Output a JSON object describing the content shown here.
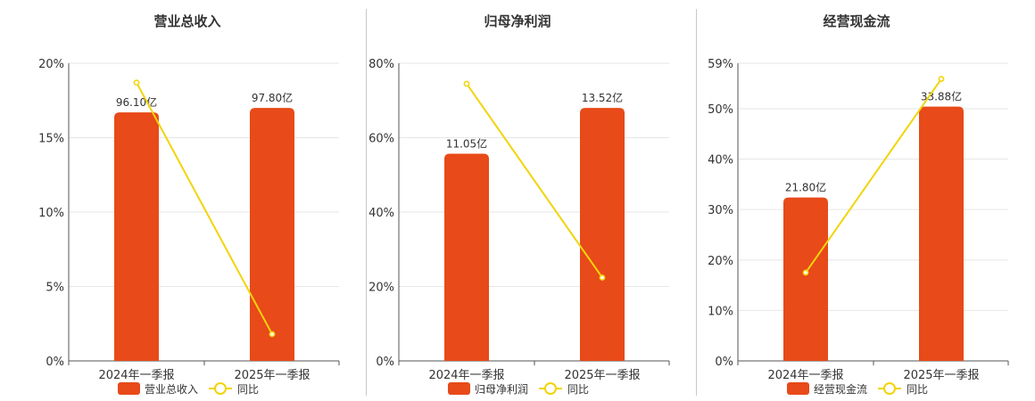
{
  "chart_data": [
    {
      "type": "bar",
      "title": "营业总收入",
      "categories": [
        "2024年一季报",
        "2025年一季报"
      ],
      "bar_series": {
        "name": "营业总收入",
        "data_labels": [
          "96.10亿",
          "97.80亿"
        ],
        "values": [
          96.1,
          97.8
        ]
      },
      "line_series": {
        "name": "同比",
        "values": [
          18.7,
          1.8
        ]
      },
      "y_ticks": [
        "0%",
        "5%",
        "10%",
        "15%",
        "20%"
      ],
      "ylim": [
        0,
        20
      ],
      "bar_heights_pct": [
        16.7,
        17.0
      ],
      "grid": true,
      "legend": "bottom"
    },
    {
      "type": "bar",
      "title": "归母净利润",
      "categories": [
        "2024年一季报",
        "2025年一季报"
      ],
      "bar_series": {
        "name": "归母净利润",
        "data_labels": [
          "11.05亿",
          "13.52亿"
        ],
        "values": [
          11.05,
          13.52
        ]
      },
      "line_series": {
        "name": "同比",
        "values": [
          74.5,
          22.4
        ]
      },
      "y_ticks": [
        "0%",
        "20%",
        "40%",
        "60%",
        "80%"
      ],
      "ylim": [
        0,
        80
      ],
      "bar_heights_pct": [
        55.7,
        68.0
      ],
      "grid": true,
      "legend": "bottom"
    },
    {
      "type": "bar",
      "title": "经营现金流",
      "categories": [
        "2024年一季报",
        "2025年一季报"
      ],
      "bar_series": {
        "name": "经营现金流",
        "data_labels": [
          "21.80亿",
          "33.88亿"
        ],
        "values": [
          21.8,
          33.88
        ]
      },
      "line_series": {
        "name": "同比",
        "values": [
          17.5,
          55.9
        ]
      },
      "y_ticks": [
        "0%",
        "10%",
        "20%",
        "30%",
        "40%",
        "50%",
        "59%"
      ],
      "y_tick_values": [
        0,
        10,
        20,
        30,
        40,
        50,
        59
      ],
      "ylim": [
        0,
        59
      ],
      "bar_heights_pct": [
        32.4,
        50.4
      ],
      "grid": true,
      "legend": "bottom"
    }
  ],
  "colors": {
    "bar": "#E84A19",
    "line": "#F2D40B",
    "grid": "#e6e6e6",
    "axis": "#555555",
    "divider": "#c8c8c8"
  }
}
